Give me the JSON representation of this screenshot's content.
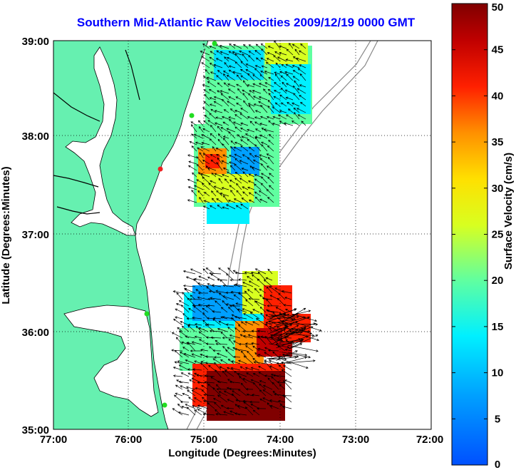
{
  "title": "Southern Mid-Atlantic Raw Velocities 2009/12/19 0000 GMT",
  "xlabel": "Longitude (Degrees:Minutes)",
  "ylabel": "Latitude (Degrees:Minutes)",
  "colorbar_label": "Surface Velocity (cm/s)",
  "x_ticks": [
    "77:00",
    "76:00",
    "75:00",
    "74:00",
    "73:00",
    "72:00"
  ],
  "y_ticks": [
    "39:00",
    "38:00",
    "37:00",
    "36:00",
    "35:00"
  ],
  "colorbar_ticks": [
    "50",
    "45",
    "40",
    "35",
    "30",
    "25",
    "20",
    "15",
    "10",
    "5",
    "0"
  ],
  "colors": {
    "land": "#66f0b0",
    "title": "#0000ff",
    "site_green": "#22dd22",
    "site_red": "#ee2222"
  },
  "map": {
    "lon_range": [
      -77,
      -72
    ],
    "lat_range": [
      35,
      39
    ],
    "colorbar_range": [
      0,
      50
    ],
    "grid": "dotted"
  }
}
